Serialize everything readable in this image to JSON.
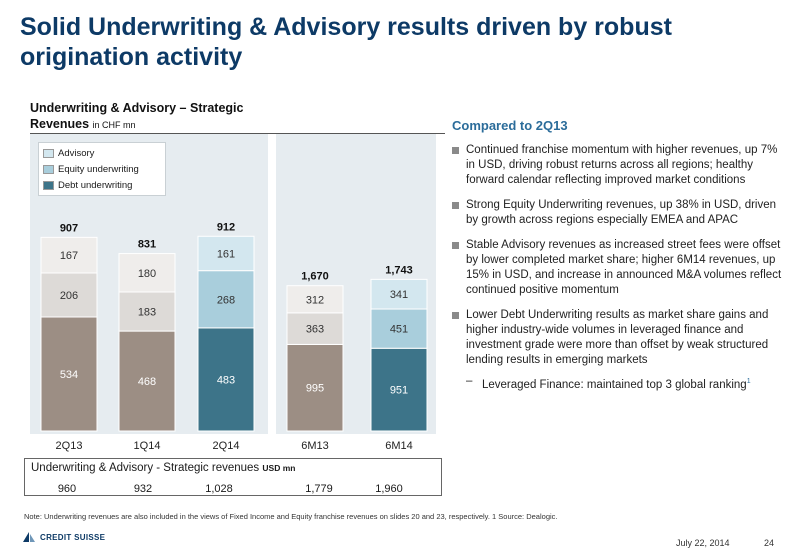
{
  "page": {
    "title": "Solid Underwriting & Advisory results driven by robust origination activity"
  },
  "chart_title": {
    "main": "Underwriting & Advisory – Strategic Revenues",
    "unit": "in CHF mn"
  },
  "chart_data": {
    "type": "bar",
    "stacked": true,
    "categories": [
      "2Q13",
      "1Q14",
      "2Q14",
      "6M13",
      "6M14"
    ],
    "series": [
      {
        "name": "Debt underwriting",
        "values": [
          534,
          468,
          483,
          995,
          951
        ],
        "color_old": "#9c8e84",
        "color_new": "#3d7489"
      },
      {
        "name": "Equity underwriting",
        "values": [
          206,
          183,
          268,
          363,
          451
        ],
        "color_old": "#dddad7",
        "color_new": "#a9cedc"
      },
      {
        "name": "Advisory",
        "values": [
          167,
          180,
          161,
          312,
          341
        ],
        "color_old": "#efedeb",
        "color_new": "#d3e7ef"
      }
    ],
    "totals": [
      907,
      831,
      912,
      1670,
      1743
    ],
    "highlighted": [
      false,
      false,
      true,
      false,
      true
    ],
    "legend": [
      "Advisory",
      "Equity underwriting",
      "Debt underwriting"
    ],
    "legend_colors": [
      "#d3e7ef",
      "#a9cedc",
      "#3d7489"
    ],
    "legend_position": "top-left",
    "grid": false
  },
  "usd_table": {
    "title": "Underwriting & Advisory - Strategic revenues",
    "unit": "USD mn",
    "values": [
      "960",
      "932",
      "1,028",
      "1,779",
      "1,960"
    ]
  },
  "commentary": {
    "heading": "Compared to 2Q13",
    "bullets": [
      "Continued franchise momentum with higher revenues, up 7% in USD, driving robust returns across all regions; healthy forward calendar reflecting improved market conditions",
      "Strong Equity Underwriting revenues, up 38% in USD, driven by growth across regions especially EMEA and APAC",
      "Stable Advisory revenues as increased street fees were offset by lower completed market share; higher 6M14 revenues, up 15% in USD, and increase in announced M&A volumes reflect continued positive momentum",
      "Lower Debt Underwriting results as market share gains and higher industry-wide volumes in leveraged finance and investment grade were more than offset by weak structured lending results in emerging markets"
    ],
    "sub_bullet": "Leveraged Finance: maintained top 3 global ranking",
    "sub_bullet_footnote": "1"
  },
  "footer": {
    "note": "Note: Underwriting revenues are also included in the views of Fixed Income and Equity franchise revenues on slides 20 and 23, respectively.  1 Source: Dealogic.",
    "logo_text": "CREDIT SUISSE",
    "date": "July 22, 2014",
    "page_number": "24"
  }
}
